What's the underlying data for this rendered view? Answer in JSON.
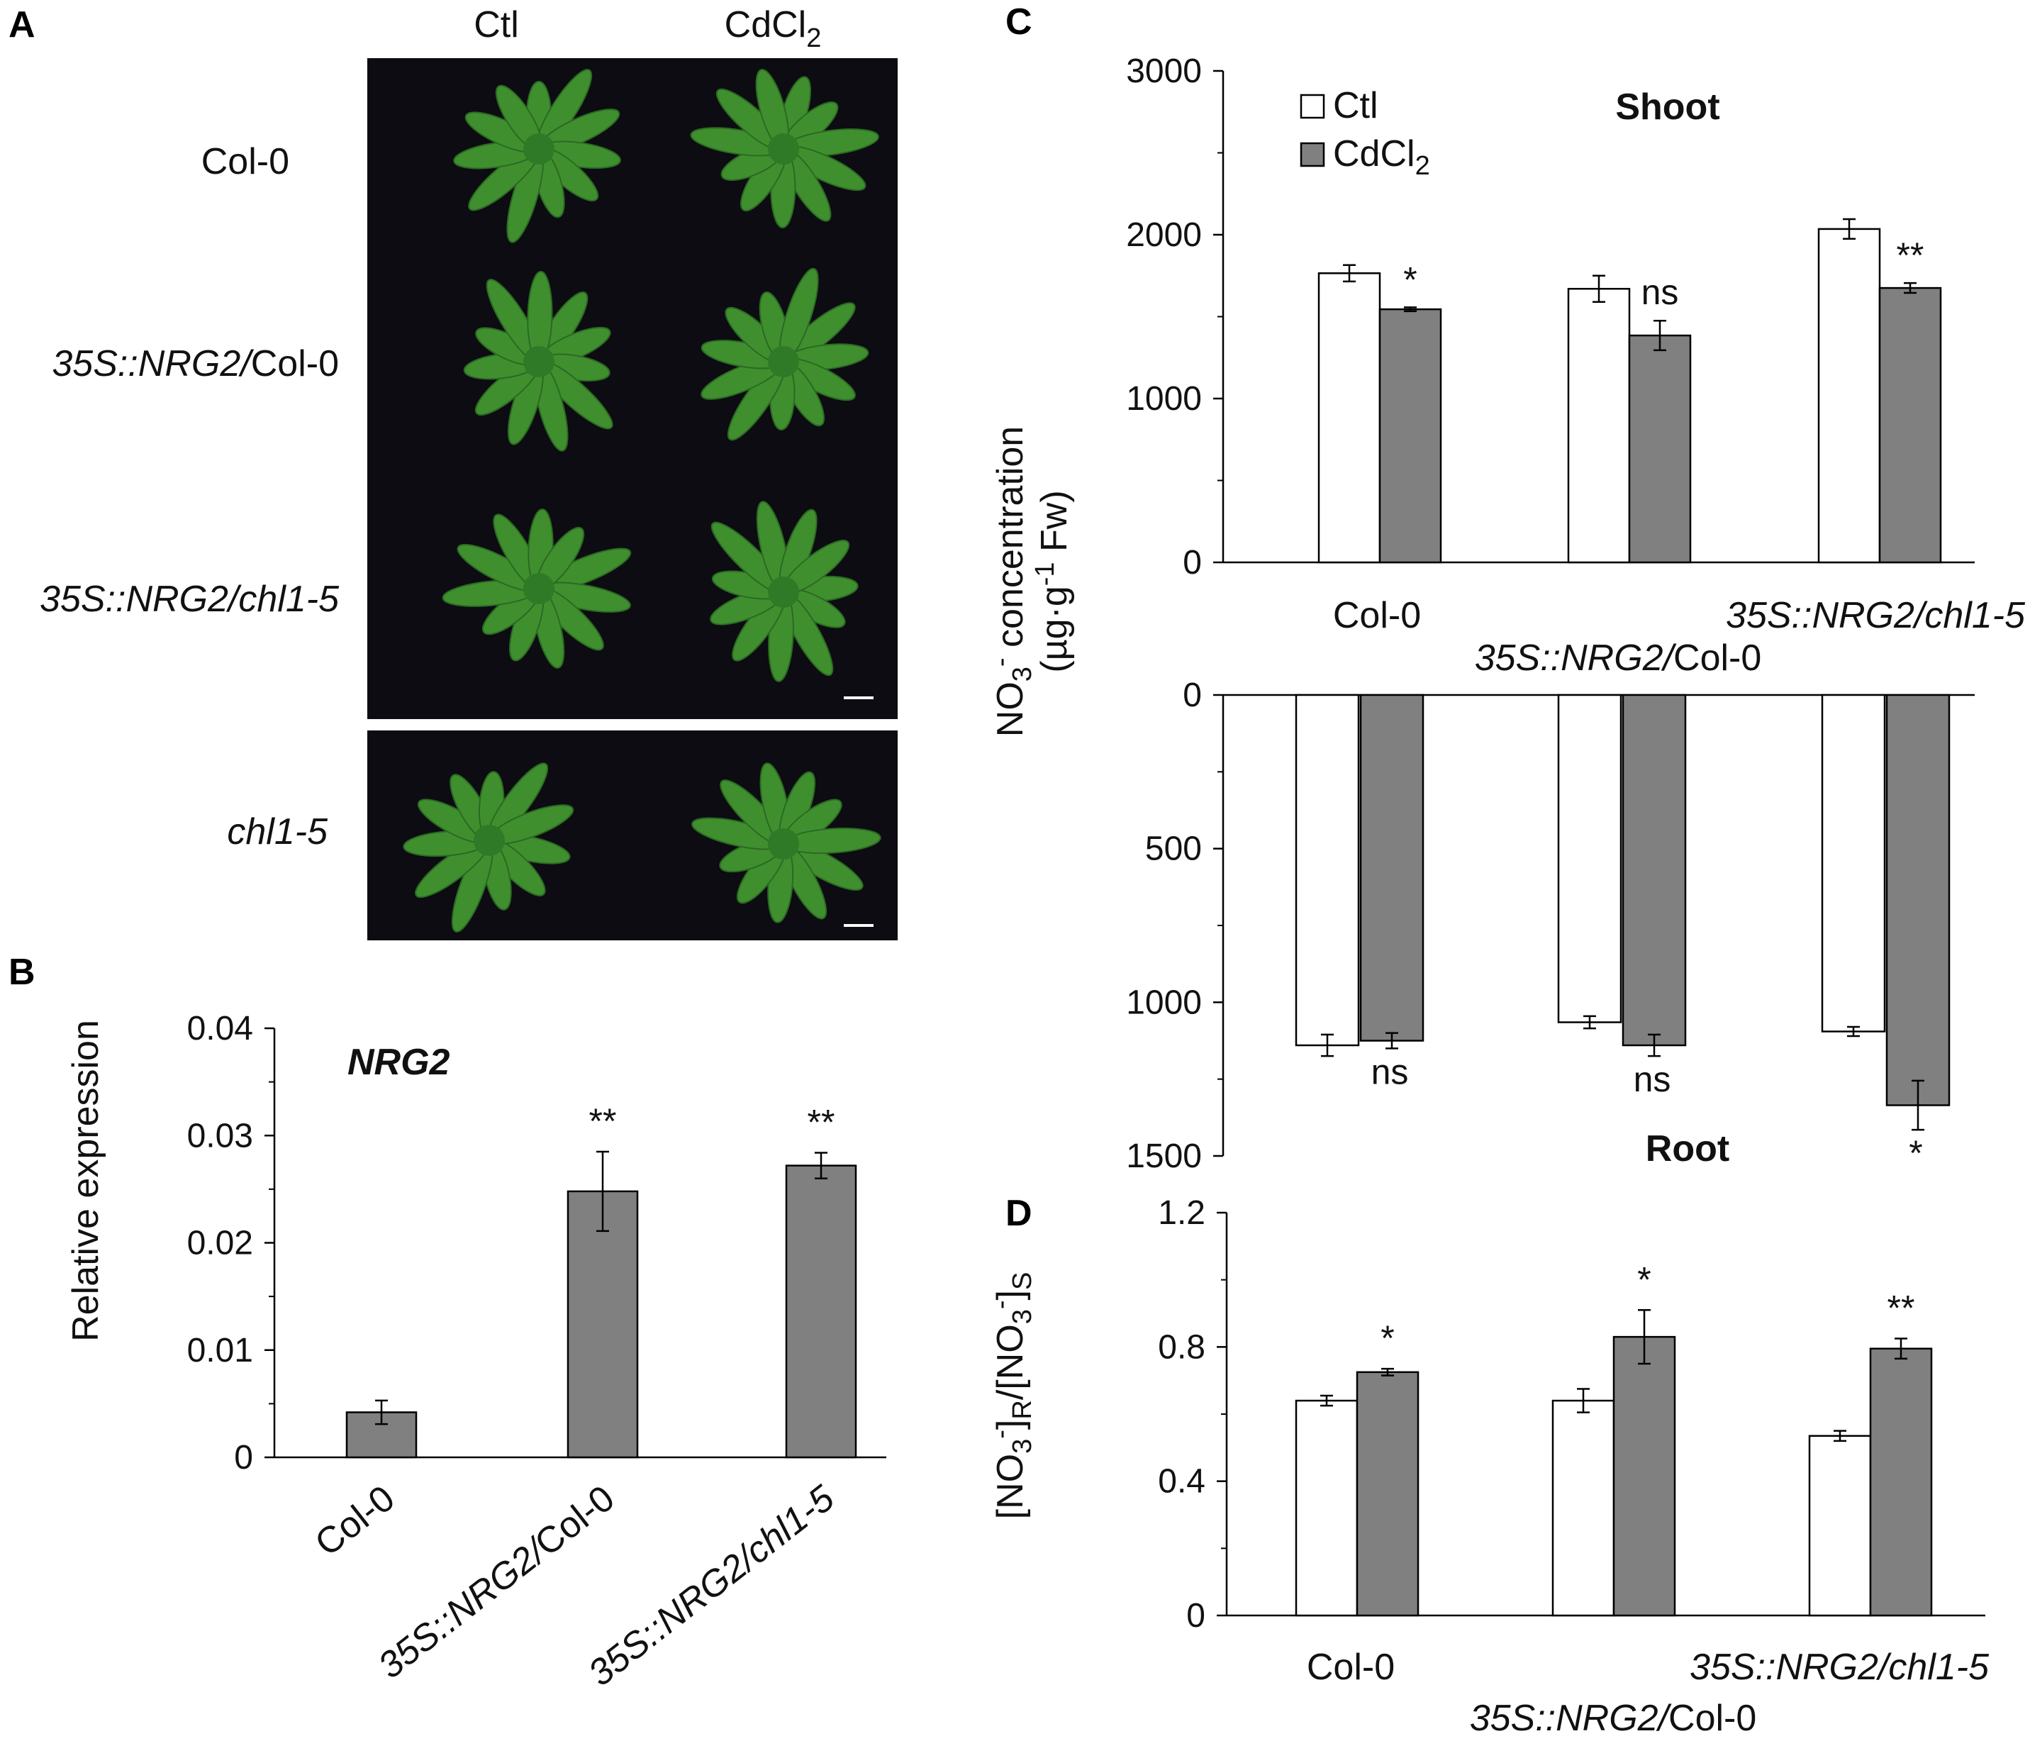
{
  "colors": {
    "ctl_fill": "#ffffff",
    "cd_fill": "#808080",
    "bar_stroke": "#000000",
    "photo_bg": "#0c0c12",
    "plant_green": "#3f8f2f"
  },
  "panel_A": {
    "letter": "A",
    "columns": [
      "Ctl",
      "CdCl2"
    ],
    "col_ctl": "Ctl",
    "col_cd_main": "CdCl",
    "col_cd_sub": "2",
    "rows": [
      {
        "prefix": "",
        "suffix": "Col-0",
        "italic_all": false
      },
      {
        "prefix": "35S::NRG2/",
        "suffix": "Col-0",
        "italic_all": false
      },
      {
        "prefix": "35S::NRG2/chl1-5",
        "suffix": "",
        "italic_all": true
      },
      {
        "prefix": "chl1-5",
        "suffix": "",
        "italic_all": true
      }
    ],
    "row1": "Col-0",
    "row2_it": "35S::NRG2/",
    "row2_rest": "Col-0",
    "row3": "35S::NRG2/chl1-5",
    "row4": "chl1-5"
  },
  "chart_data": [
    {
      "panel": "B",
      "type": "bar",
      "title": "NRG2",
      "ylabel": "Relative expression",
      "xlabel": "",
      "categories": [
        "Col-0",
        "35S::NRG2/Col-0",
        "35S::NRG2/chl1-5"
      ],
      "values": [
        0.0042,
        0.0248,
        0.0272
      ],
      "errors": [
        0.0011,
        0.0037,
        0.0012
      ],
      "significance": [
        "",
        "**",
        "**"
      ],
      "ylim": [
        0,
        0.04
      ],
      "yticks": [
        "0",
        "0.01",
        "0.02",
        "0.03",
        "0.04"
      ],
      "legend": null,
      "grid": false
    },
    {
      "panel": "C",
      "type": "bar",
      "title": "Shoot",
      "ylabel": "NO3- concentration (µg·g-1 Fw)",
      "categories": [
        "Col-0",
        "35S::NRG2/Col-0",
        "35S::NRG2/chl1-5"
      ],
      "series": [
        {
          "name": "Ctl",
          "values": [
            1765,
            1670,
            2035
          ],
          "errors": [
            50,
            80,
            60
          ]
        },
        {
          "name": "CdCl2",
          "values": [
            1545,
            1385,
            1675
          ],
          "errors": [
            12,
            90,
            30
          ]
        }
      ],
      "significance": [
        "*",
        "ns",
        "**"
      ],
      "ylim": [
        0,
        3000
      ],
      "yticks": [
        "0",
        "1000",
        "2000",
        "3000"
      ],
      "legend": "top-left",
      "grid": false
    },
    {
      "panel": "C",
      "type": "bar",
      "title": "Root",
      "inverted_axis": true,
      "categories": [
        "Col-0",
        "35S::NRG2/Col-0",
        "35S::NRG2/chl1-5"
      ],
      "series": [
        {
          "name": "Ctl",
          "values": [
            1140,
            1065,
            1095
          ],
          "errors": [
            35,
            20,
            15
          ]
        },
        {
          "name": "CdCl2",
          "values": [
            1125,
            1140,
            1335
          ],
          "errors": [
            25,
            35,
            80
          ]
        }
      ],
      "significance": [
        "ns",
        "ns",
        "*"
      ],
      "ylim": [
        0,
        1500
      ],
      "yticks": [
        "0",
        "500",
        "1000",
        "1500"
      ],
      "grid": false
    },
    {
      "panel": "D",
      "type": "bar",
      "ylabel": "[NO3-]R/[NO3-]S",
      "categories": [
        "Col-0",
        "35S::NRG2/Col-0",
        "35S::NRG2/chl1-5"
      ],
      "series": [
        {
          "name": "Ctl",
          "values": [
            0.64,
            0.64,
            0.535
          ],
          "errors": [
            0.015,
            0.035,
            0.015
          ]
        },
        {
          "name": "CdCl2",
          "values": [
            0.725,
            0.83,
            0.795
          ],
          "errors": [
            0.01,
            0.08,
            0.03
          ]
        }
      ],
      "significance": [
        "*",
        "*",
        "**"
      ],
      "ylim": [
        0,
        1.2
      ],
      "yticks": [
        "0",
        "0.4",
        "0.8",
        "1.2"
      ],
      "grid": false
    }
  ],
  "labels": {
    "B_letter": "B",
    "B_title": "NRG2",
    "B_ylabel": "Relative expression",
    "B_cat1": "Col-0",
    "B_cat2_it": "35S::NRG2/",
    "B_cat2_rest": "Col-0",
    "B_cat3": "35S::NRG2/chl1-5",
    "C_letter": "C",
    "C_shoot": "Shoot",
    "C_root": "Root",
    "C_legend_ctl": "Ctl",
    "C_legend_cd_main": "CdCl",
    "C_legend_cd_sub": "2",
    "C_ylabel_1a": "NO",
    "C_ylabel_1sub": "3",
    "C_ylabel_1sup": "-",
    "C_ylabel_1b": " concentration",
    "C_ylabel_2a": "(µg·g",
    "C_ylabel_2sup": "-1",
    "C_ylabel_2b": " Fw)",
    "C_cat1": "Col-0",
    "C_cat2_it": "35S::NRG2/",
    "C_cat2_rest": "Col-0",
    "C_cat3": "35S::NRG2/chl1-5",
    "D_letter": "D",
    "D_ylab_a": "[NO",
    "D_ylab_sub1": "3",
    "D_ylab_sup1": "-",
    "D_ylab_b": "]",
    "D_ylab_subR": "R",
    "D_ylab_c": "/[NO",
    "D_ylab_sub2": "3",
    "D_ylab_sup2": "-",
    "D_ylab_d": "]",
    "D_ylab_subS": "S",
    "D_cat1": "Col-0",
    "D_cat2_it": "35S::NRG2/",
    "D_cat2_rest": "Col-0",
    "D_cat3": "35S::NRG2/chl1-5"
  }
}
